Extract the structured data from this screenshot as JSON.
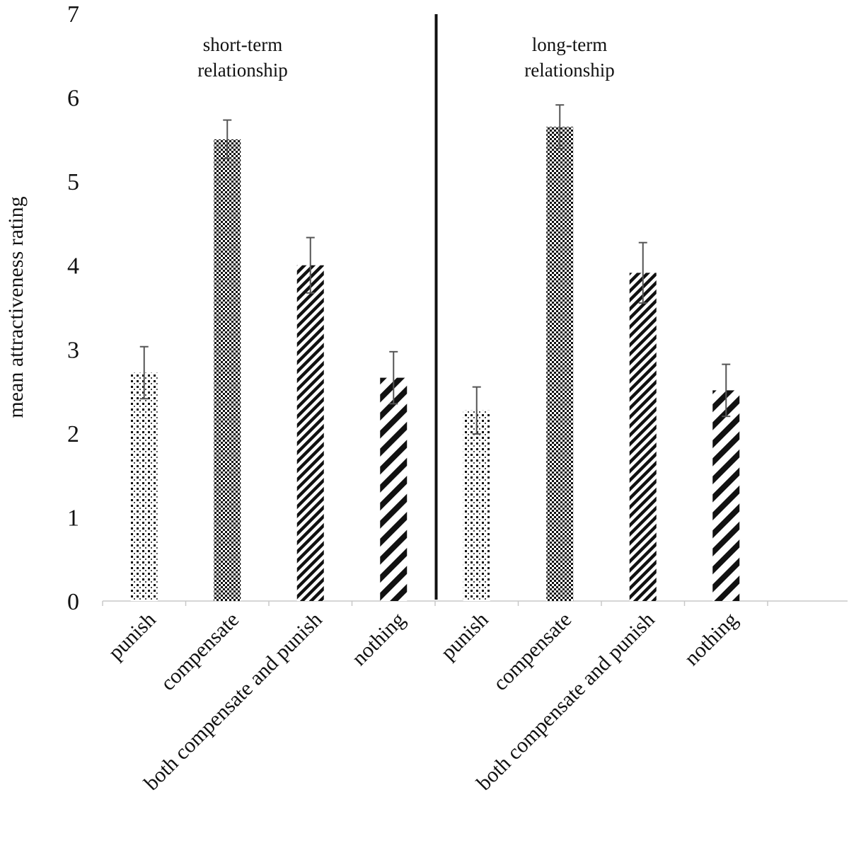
{
  "chart_data": {
    "type": "bar",
    "ylabel": "mean attractiveness rating",
    "xlabel": "",
    "ylim": [
      0,
      7
    ],
    "yticks": [
      "0",
      "1",
      "2",
      "3",
      "4",
      "5",
      "6",
      "7"
    ],
    "grid": false,
    "groups": [
      {
        "name_line1": "short-term",
        "name_line2": "relationship",
        "categories": [
          "punish",
          "compensate",
          "both compensate and punish",
          "nothing"
        ],
        "values": [
          2.72,
          5.5,
          4.0,
          2.66
        ],
        "errors": [
          0.31,
          0.23,
          0.33,
          0.31
        ]
      },
      {
        "name_line1": "long-term",
        "name_line2": "relationship",
        "categories": [
          "punish",
          "compensate",
          "both compensate and punish",
          "nothing"
        ],
        "values": [
          2.27,
          5.65,
          3.91,
          2.51
        ],
        "errors": [
          0.28,
          0.26,
          0.36,
          0.31
        ]
      }
    ],
    "patterns": [
      "sparse-dots",
      "dense-checker",
      "fine-diagonal",
      "wide-diagonal"
    ],
    "colors": {
      "bar_ink": "#111111",
      "error_bar": "#555555",
      "axis": "#c8c8c8",
      "divider": "#111111"
    }
  }
}
